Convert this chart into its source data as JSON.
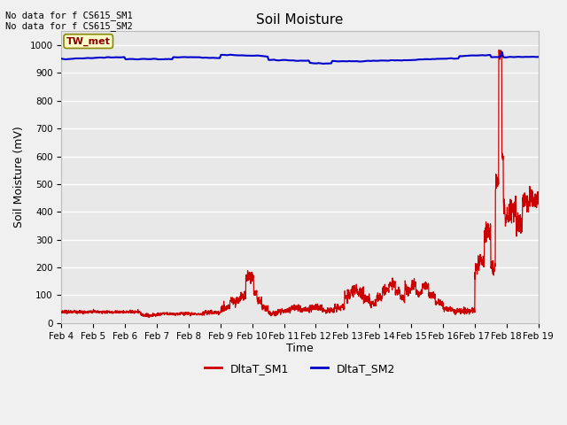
{
  "title": "Soil Moisture",
  "xlabel": "Time",
  "ylabel": "Soil Moisture (mV)",
  "ylim": [
    0,
    1050
  ],
  "yticks": [
    0,
    100,
    200,
    300,
    400,
    500,
    600,
    700,
    800,
    900,
    1000
  ],
  "annotation_top": "No data for f CS615_SM1\nNo data for f CS615_SM2",
  "legend_label_box": "TW_met",
  "xtick_labels": [
    "Feb 4",
    "Feb 5",
    "Feb 6",
    "Feb 7",
    "Feb 8",
    "Feb 9",
    "Feb 10",
    "Feb 11",
    "Feb 12",
    "Feb 13",
    "Feb 14",
    "Feb 15",
    "Feb 16",
    "Feb 17",
    "Feb 18",
    "Feb 19"
  ],
  "sm1_color": "#cc0000",
  "sm2_color": "#0000cc",
  "bg_color": "#e8e8e8",
  "grid_color": "#ffffff",
  "legend_sm1": "DltaT_SM1",
  "legend_sm2": "DltaT_SM2",
  "fig_bg": "#f0f0f0"
}
